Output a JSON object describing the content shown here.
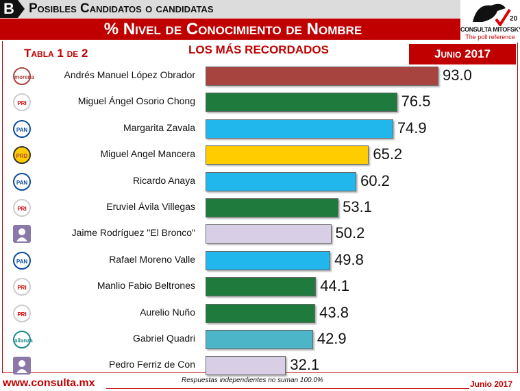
{
  "header": {
    "section_letter": "B",
    "section_title": "Posibles Candidatos o candidatas",
    "title": "% Nivel de Conocimiento de Nombre",
    "logo_text": "CONSULTA MITOFSKY",
    "logo_tagline": "The poll reference",
    "logo_badge": "20"
  },
  "subheader": {
    "table": "Tabla 1 de 2",
    "heading": "LOS MÁS RECORDADOS",
    "date": "Junio 2017"
  },
  "footer": {
    "url": "www.consulta.mx",
    "note": "Respuestas independientes no suman 100.0%",
    "date": "Junio 2017"
  },
  "colors": {
    "morena": "#a8443f",
    "pri": "#1e7b3d",
    "pan": "#22b7ec",
    "prd": "#ffcc00",
    "independiente": "#d8cfe6",
    "nueva_alianza": "#4cb6c8"
  },
  "chart_data": {
    "type": "bar",
    "orientation": "horizontal",
    "title": "% Nivel de Conocimiento de Nombre",
    "xlim": [
      0,
      100
    ],
    "grid": false,
    "categories": [
      "Andrés Manuel López Obrador",
      "Miguel Ángel Osorio Chong",
      "Margarita Zavala",
      "Miguel Angel Mancera",
      "Ricardo Anaya",
      "Eruviel Ávila Villegas",
      "Jaime Rodríguez \"El Bronco\"",
      "Rafael Moreno Valle",
      "Manlio Fabio Beltrones",
      "Aurelio Nuño",
      "Gabriel Quadri",
      "Pedro Ferriz de Con"
    ],
    "values": [
      93.0,
      76.5,
      74.9,
      65.2,
      60.2,
      53.1,
      50.2,
      49.8,
      44.1,
      43.8,
      42.9,
      32.1
    ],
    "labels": [
      "93.0",
      "76.5",
      "74.9",
      "65.2",
      "60.2",
      "53.1",
      "50.2",
      "49.8",
      "44.1",
      "43.8",
      "42.9",
      "32.1"
    ],
    "parties": [
      "morena",
      "pri",
      "pan",
      "prd",
      "pan",
      "pri",
      "independiente",
      "pan",
      "pri",
      "pri",
      "nueva_alianza",
      "independiente"
    ],
    "party_icons": [
      "morena",
      "PRI",
      "PAN",
      "PRD",
      "PAN",
      "PRI",
      "",
      "PAN",
      "PRI",
      "PRI",
      "alianza",
      ""
    ]
  }
}
